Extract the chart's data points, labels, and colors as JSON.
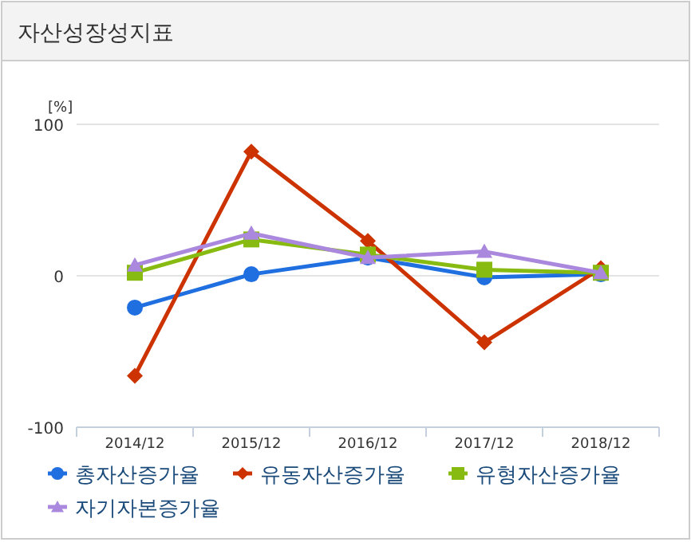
{
  "chart_data": {
    "type": "line",
    "title": "자산성장성지표",
    "ylabel": "[%]",
    "categories": [
      "2014/12",
      "2015/12",
      "2016/12",
      "2017/12",
      "2018/12"
    ],
    "series": [
      {
        "name": "총자산증가율",
        "color": "#1f6fe0",
        "marker": "circle",
        "values": [
          -21,
          1,
          12,
          -1,
          1
        ]
      },
      {
        "name": "유동자산증가율",
        "color": "#cc3300",
        "marker": "diamond",
        "values": [
          -66,
          82,
          23,
          -44,
          5
        ]
      },
      {
        "name": "유형자산증가율",
        "color": "#88bb11",
        "marker": "square",
        "values": [
          2,
          24,
          14,
          4,
          2
        ]
      },
      {
        "name": "자기자본증가율",
        "color": "#aa88dd",
        "marker": "triangle",
        "values": [
          7,
          28,
          12,
          16,
          2
        ]
      }
    ],
    "ylim": [
      -100,
      100
    ],
    "yticks": [
      -100,
      0,
      100
    ],
    "grid": "y",
    "legend": "bottom"
  }
}
